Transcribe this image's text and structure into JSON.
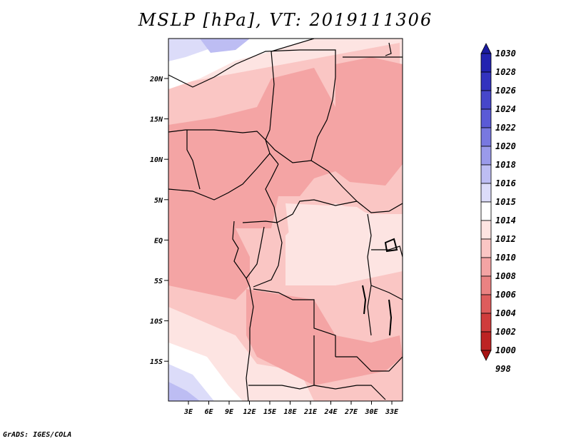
{
  "title": "MSLP [hPa], VT: 2019111306",
  "footer": "GrADS: IGES/COLA",
  "lat_labels": [
    "20N",
    "15N",
    "10N",
    "5N",
    "EQ",
    "5S",
    "10S",
    "15S"
  ],
  "lon_labels": [
    "3E",
    "6E",
    "9E",
    "12E",
    "15E",
    "18E",
    "21E",
    "24E",
    "27E",
    "30E",
    "33E"
  ],
  "colorbar": [
    {
      "label": "1030",
      "color": "#1b1ba0"
    },
    {
      "label": "1028",
      "color": "#2323b0"
    },
    {
      "label": "1026",
      "color": "#3232be"
    },
    {
      "label": "1024",
      "color": "#4646ca"
    },
    {
      "label": "1022",
      "color": "#5a5ad6"
    },
    {
      "label": "1020",
      "color": "#7878e0"
    },
    {
      "label": "1018",
      "color": "#9a9aea"
    },
    {
      "label": "1016",
      "color": "#bdbdf3"
    },
    {
      "label": "1015",
      "color": "#dcdcf9"
    },
    {
      "label": "1014",
      "color": "#ffffff"
    },
    {
      "label": "1012",
      "color": "#fde4e2"
    },
    {
      "label": "1010",
      "color": "#fac6c4"
    },
    {
      "label": "1008",
      "color": "#f4a4a4"
    },
    {
      "label": "1006",
      "color": "#ea8282"
    },
    {
      "label": "1004",
      "color": "#de5c5c"
    },
    {
      "label": "1002",
      "color": "#cf3c3c"
    },
    {
      "label": "1000",
      "color": "#bd2323"
    },
    {
      "label": "998",
      "color": "#a81414"
    }
  ]
}
